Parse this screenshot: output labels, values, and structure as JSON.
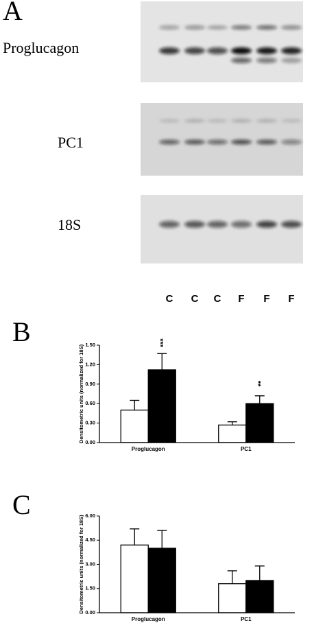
{
  "figure": {
    "panel_label": "A",
    "rows": [
      "Proglucagon",
      "PC1",
      "18S"
    ],
    "lanes": [
      "C",
      "C",
      "C",
      "F",
      "F",
      "F"
    ]
  },
  "chart_data": [
    {
      "type": "bar",
      "panel_label": "B",
      "y_label": "Densitometric units (normalized for 18S)",
      "categories": [
        "Proglucagon",
        "PC1"
      ],
      "series": [
        {
          "color": "#ffffff",
          "values": [
            0.5,
            0.27
          ],
          "errors": [
            0.15,
            0.05
          ]
        },
        {
          "color": "#000000",
          "values": [
            1.12,
            0.6
          ],
          "errors": [
            0.25,
            0.12
          ],
          "significance": [
            "***",
            "**"
          ]
        }
      ],
      "ylim": [
        0,
        1.5
      ],
      "yticks": [
        {
          "value": 0,
          "label": "0.00"
        },
        {
          "value": 0.3,
          "label": "0.30"
        },
        {
          "value": 0.6,
          "label": "0.60"
        },
        {
          "value": 0.9,
          "label": "0.90"
        },
        {
          "value": 1.2,
          "label": "1.20"
        },
        {
          "value": 1.5,
          "label": "1.50"
        }
      ]
    },
    {
      "type": "bar",
      "panel_label": "C",
      "y_label": "Densitometric units (normalized for 18S)",
      "categories": [
        "Proglucagon",
        "PC1"
      ],
      "series": [
        {
          "color": "#ffffff",
          "values": [
            4.2,
            1.8
          ],
          "errors": [
            1.0,
            0.8
          ]
        },
        {
          "color": "#000000",
          "values": [
            4.0,
            2.0
          ],
          "errors": [
            1.1,
            0.9
          ]
        }
      ],
      "ylim": [
        0,
        6
      ],
      "yticks": [
        {
          "value": 0,
          "label": "0.00"
        },
        {
          "value": 1.5,
          "label": "1.50"
        },
        {
          "value": 3,
          "label": "3.00"
        },
        {
          "value": 4.5,
          "label": "4.50"
        },
        {
          "value": 6,
          "label": "6.00"
        }
      ]
    }
  ]
}
